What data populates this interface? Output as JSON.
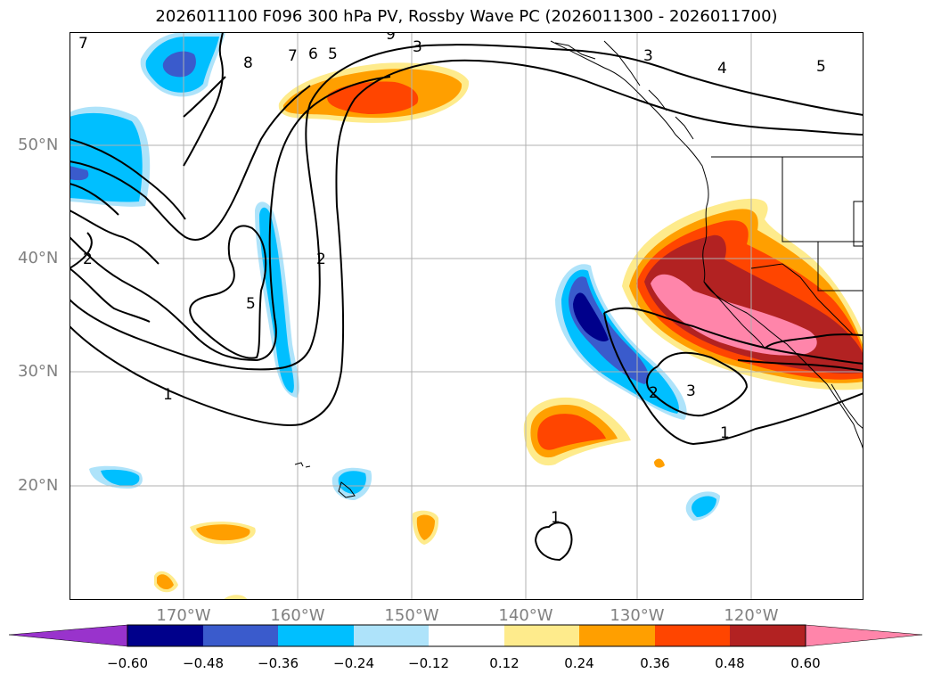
{
  "title": "2026011100 F096 300 hPa PV, Rossby Wave PC (2026011300 - 2026011700)",
  "lat_labels": [
    "50°N",
    "40°N",
    "30°N",
    "20°N"
  ],
  "lon_labels": [
    "170°W",
    "160°W",
    "150°W",
    "140°W",
    "130°W",
    "120°W"
  ],
  "colorbar": {
    "colors": [
      "#9933cc",
      "#00008b",
      "#3a5bcc",
      "#00bfff",
      "#aee3fa",
      "#ffffff",
      "#feeb8c",
      "#ff9f00",
      "#ff4500",
      "#b22222",
      "#ff85aa"
    ],
    "tick_labels": [
      "−0.60",
      "−0.48",
      "−0.36",
      "−0.24",
      "−0.12",
      "0.12",
      "0.24",
      "0.36",
      "0.48",
      "0.60"
    ]
  },
  "contour_labels": [
    "7",
    "8",
    "7",
    "6",
    "5",
    "9",
    "3",
    "3",
    "4",
    "5",
    "2",
    "2",
    "5",
    "1",
    "2",
    "3",
    "1",
    "1"
  ]
}
